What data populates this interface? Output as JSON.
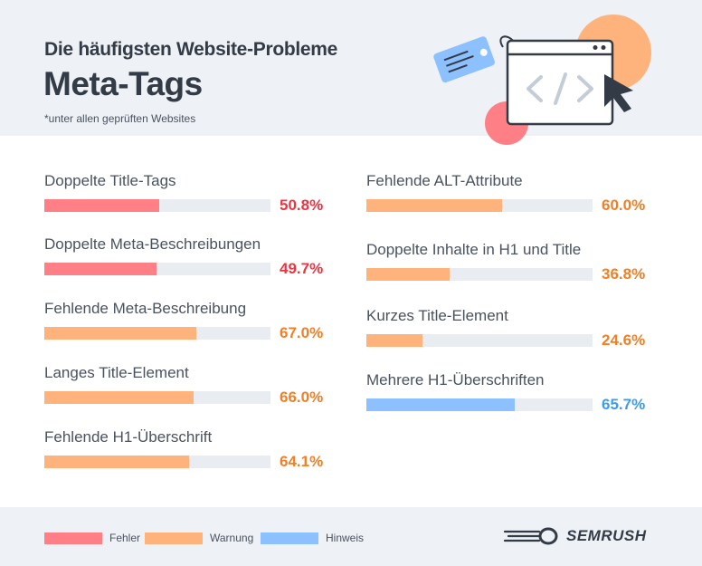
{
  "header": {
    "subtitle": "Die häufigsten Website-Probleme",
    "title": "Meta-Tags",
    "note": "*unter allen geprüften Websites"
  },
  "colors": {
    "error": "#ff7f86",
    "warning": "#fdb37b",
    "notice": "#8cc0fe",
    "error_text": "#ef3340",
    "warning_text": "#f27f23",
    "notice_text": "#3a9cf0"
  },
  "legend": [
    {
      "label": "Fehler",
      "severity": "error"
    },
    {
      "label": "Warnung",
      "severity": "warning"
    },
    {
      "label": "Hinweis",
      "severity": "notice"
    }
  ],
  "brand": {
    "name": "SEMRUSH"
  },
  "illustration": {
    "icons": [
      "tag-icon",
      "browser-window-icon",
      "code-icon",
      "cursor-icon"
    ]
  },
  "chart_data": {
    "type": "bar",
    "orientation": "horizontal",
    "xlim": [
      0,
      100
    ],
    "unit": "%",
    "items": [
      {
        "label": "Doppelte Title-Tags",
        "value": 50.8,
        "display": "50.8%",
        "severity": "error"
      },
      {
        "label": "Doppelte Meta-Beschreibungen",
        "value": 49.7,
        "display": "49.7%",
        "severity": "error"
      },
      {
        "label": "Fehlende Meta-Beschreibung",
        "value": 67.0,
        "display": "67.0%",
        "severity": "warning"
      },
      {
        "label": "Langes Title-Element",
        "value": 66.0,
        "display": "66.0%",
        "severity": "warning"
      },
      {
        "label": "Fehlende H1-Überschrift",
        "value": 64.1,
        "display": "64.1%",
        "severity": "warning"
      },
      {
        "label": "Fehlende ALT-Attribute",
        "value": 60.0,
        "display": "60.0%",
        "severity": "warning"
      },
      {
        "label": "Doppelte Inhalte in H1 und Title",
        "value": 36.8,
        "display": "36.8%",
        "severity": "warning"
      },
      {
        "label": "Kurzes Title-Element",
        "value": 24.6,
        "display": "24.6%",
        "severity": "warning"
      },
      {
        "label": "Mehrere H1-Überschriften",
        "value": 65.7,
        "display": "65.7%",
        "severity": "notice"
      }
    ]
  }
}
